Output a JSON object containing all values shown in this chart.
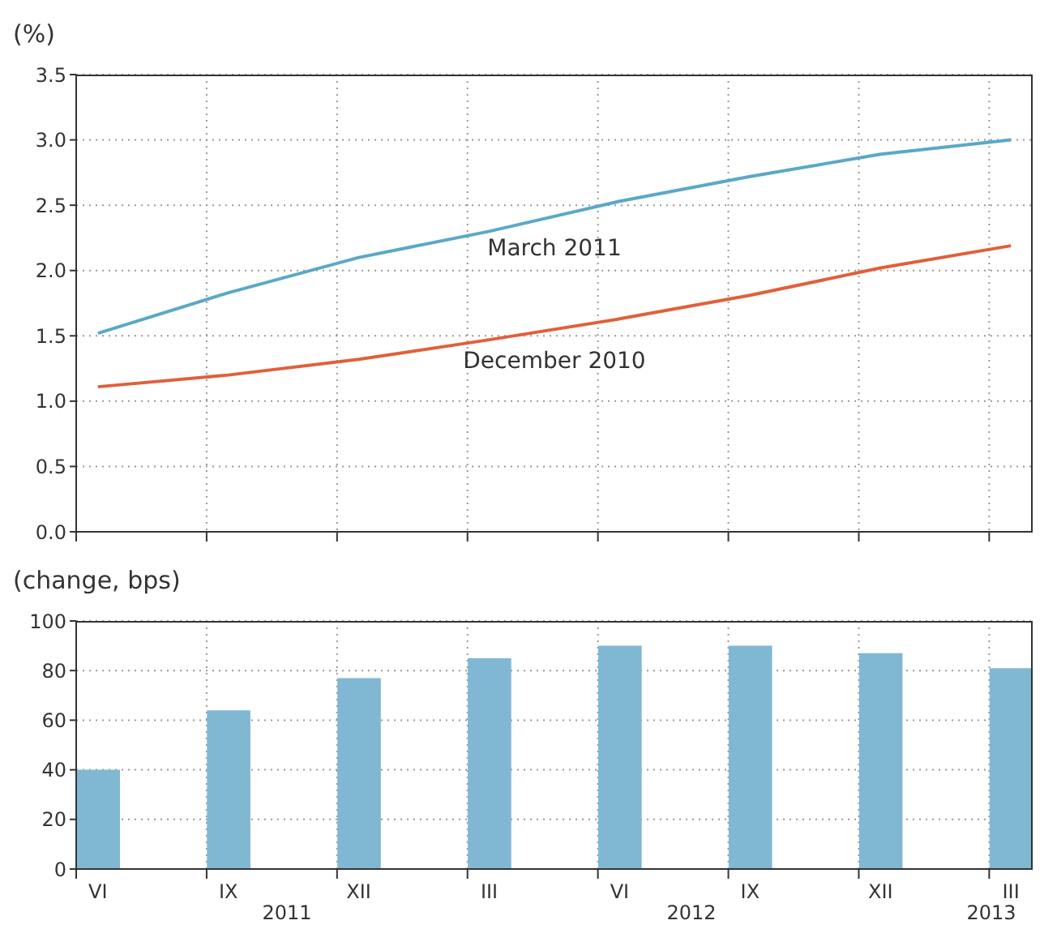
{
  "chart_data": [
    {
      "type": "line",
      "ylabel": "(%)",
      "categories": [
        null,
        null,
        null,
        null,
        null,
        null,
        null,
        null
      ],
      "tick_labels": "y",
      "ylim": [
        0,
        3.5
      ],
      "yticks": [
        {
          "value": 0,
          "label": "0.0"
        },
        0.5,
        {
          "value": 1,
          "label": "1.0"
        },
        1.5,
        {
          "value": 2,
          "label": "2.0"
        },
        2.5,
        {
          "value": 3,
          "label": "3.0"
        },
        3.5
      ],
      "grid": true,
      "series": [
        {
          "name": "March 2011",
          "color": "#5ba8c8",
          "values": [
            1.52,
            1.83,
            2.1,
            2.3,
            2.53,
            2.72,
            2.89,
            3.0
          ]
        },
        {
          "name": "December 2010",
          "color": "#e0603a",
          "values": [
            1.11,
            1.2,
            1.32,
            1.47,
            1.63,
            1.81,
            2.02,
            2.19
          ]
        }
      ]
    },
    {
      "type": "bar",
      "ylabel": "(change, bps)",
      "categories": [
        "VI",
        "IX",
        "XII",
        "III",
        "VI",
        "IX",
        "XII",
        "III"
      ],
      "values": [
        40,
        64,
        77,
        85,
        90,
        90,
        87,
        81
      ],
      "color": "#80b8d4",
      "ylim": [
        0,
        100
      ],
      "yticks": [
        0,
        20,
        40,
        60,
        80,
        100
      ],
      "grid": true,
      "annotations": [
        "2011",
        "2012",
        "2013"
      ]
    }
  ]
}
